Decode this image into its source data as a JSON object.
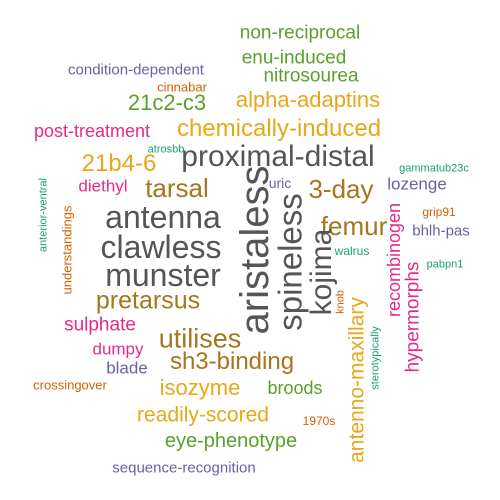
{
  "colors": {
    "green": "#5aa02c",
    "purple": "#6e5fa3",
    "orange": "#d95f02",
    "gold": "#e6a817",
    "magenta": "#e7298a",
    "brown": "#a6761d",
    "gray": "#555555",
    "teal": "#1b9e77"
  },
  "words": [
    {
      "text": "non-reciprocal",
      "color": "green"
    },
    {
      "text": "enu-induced",
      "color": "green"
    },
    {
      "text": "condition-dependent",
      "color": "purple"
    },
    {
      "text": "nitrosourea",
      "color": "green"
    },
    {
      "text": "cinnabar",
      "color": "orange"
    },
    {
      "text": "21c2-c3",
      "color": "green"
    },
    {
      "text": "alpha-adaptins",
      "color": "gold"
    },
    {
      "text": "atrosbb",
      "color": "teal"
    },
    {
      "text": "post-treatment",
      "color": "magenta"
    },
    {
      "text": "chemically-induced",
      "color": "gold"
    },
    {
      "text": "21b4-6",
      "color": "gold"
    },
    {
      "text": "proximal-distal",
      "color": "gray"
    },
    {
      "text": "gammatub23c",
      "color": "teal"
    },
    {
      "text": "diethyl",
      "color": "magenta"
    },
    {
      "text": "tarsal",
      "color": "brown"
    },
    {
      "text": "uric",
      "color": "purple"
    },
    {
      "text": "3-day",
      "color": "brown"
    },
    {
      "text": "lozenge",
      "color": "purple"
    },
    {
      "text": "aristaless",
      "color": "gray"
    },
    {
      "text": "antenna",
      "color": "gray"
    },
    {
      "text": "grip91",
      "color": "orange"
    },
    {
      "text": "spineless",
      "color": "gray"
    },
    {
      "text": "femur",
      "color": "brown"
    },
    {
      "text": "bhlh-pas",
      "color": "purple"
    },
    {
      "text": "anterior-ventral",
      "color": "teal"
    },
    {
      "text": "understandings",
      "color": "orange"
    },
    {
      "text": "clawless",
      "color": "gray"
    },
    {
      "text": "recombinogen",
      "color": "magenta"
    },
    {
      "text": "walrus",
      "color": "teal"
    },
    {
      "text": "kojima",
      "color": "gray"
    },
    {
      "text": "pabpn1",
      "color": "teal"
    },
    {
      "text": "munster",
      "color": "gray"
    },
    {
      "text": "pretarsus",
      "color": "brown"
    },
    {
      "text": "hypermorphs",
      "color": "magenta"
    },
    {
      "text": "knob",
      "color": "orange"
    },
    {
      "text": "sulphate",
      "color": "magenta"
    },
    {
      "text": "antenno-maxillary",
      "color": "gold"
    },
    {
      "text": "utilises",
      "color": "brown"
    },
    {
      "text": "sterotypically",
      "color": "teal"
    },
    {
      "text": "dumpy",
      "color": "magenta"
    },
    {
      "text": "sh3-binding",
      "color": "brown"
    },
    {
      "text": "blade",
      "color": "purple"
    },
    {
      "text": "crossingover",
      "color": "orange"
    },
    {
      "text": "isozyme",
      "color": "gold"
    },
    {
      "text": "broods",
      "color": "green"
    },
    {
      "text": "readily-scored",
      "color": "gold"
    },
    {
      "text": "1970s",
      "color": "orange"
    },
    {
      "text": "eye-phenotype",
      "color": "green"
    },
    {
      "text": "sequence-recognition",
      "color": "purple"
    }
  ]
}
